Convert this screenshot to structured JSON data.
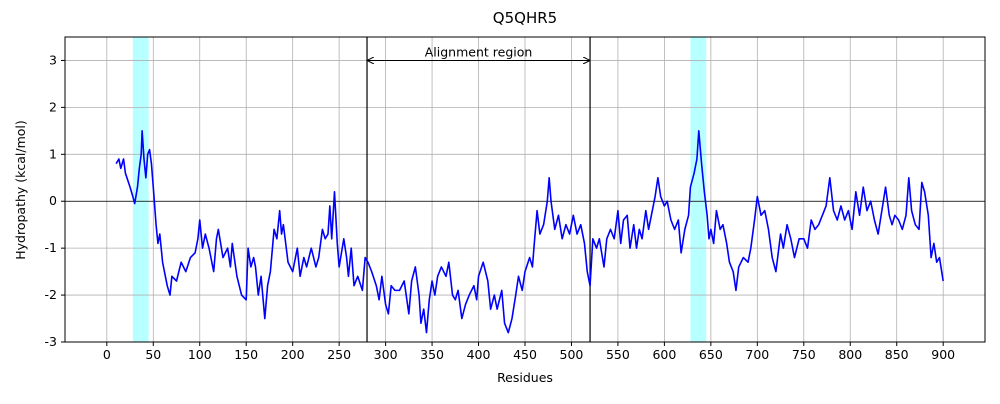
{
  "chart_data": {
    "type": "line",
    "title": "Q5QHR5",
    "xlabel": "Residues",
    "ylabel": "Hydropathy (kcal/mol)",
    "annotation": "Alignment region",
    "xlim": [
      -45,
      945
    ],
    "ylim": [
      -3,
      3.5
    ],
    "xticks": [
      0,
      50,
      100,
      150,
      200,
      250,
      300,
      350,
      400,
      450,
      500,
      550,
      600,
      650,
      700,
      750,
      800,
      850,
      900
    ],
    "yticks": [
      -3,
      -2,
      -1,
      0,
      1,
      2,
      3
    ],
    "grid": true,
    "hline": 0,
    "vlines": [
      280,
      520
    ],
    "arrow_y": 3,
    "highlight_color": "#b8ffff",
    "highlight_regions": [
      [
        28,
        45
      ],
      [
        628,
        645
      ]
    ],
    "x": [
      10,
      13,
      15,
      18,
      20,
      25,
      28,
      30,
      33,
      35,
      37,
      38,
      40,
      42,
      44,
      46,
      48,
      50,
      53,
      55,
      57,
      60,
      63,
      65,
      68,
      70,
      75,
      80,
      85,
      90,
      95,
      98,
      100,
      103,
      106,
      110,
      115,
      118,
      120,
      125,
      130,
      133,
      135,
      140,
      145,
      150,
      152,
      155,
      158,
      160,
      163,
      166,
      170,
      173,
      176,
      180,
      183,
      186,
      188,
      190,
      195,
      200,
      205,
      208,
      212,
      215,
      220,
      225,
      228,
      232,
      235,
      238,
      240,
      242,
      245,
      248,
      250,
      255,
      258,
      260,
      263,
      266,
      270,
      275,
      278,
      281,
      285,
      290,
      293,
      296,
      300,
      303,
      306,
      310,
      315,
      320,
      325,
      328,
      332,
      336,
      338,
      341,
      344,
      347,
      350,
      353,
      356,
      360,
      365,
      368,
      372,
      375,
      378,
      382,
      386,
      390,
      395,
      398,
      400,
      405,
      410,
      413,
      417,
      420,
      425,
      428,
      432,
      436,
      440,
      443,
      447,
      450,
      455,
      458,
      460,
      463,
      466,
      470,
      474,
      476,
      478,
      482,
      486,
      490,
      494,
      498,
      502,
      506,
      510,
      514,
      517,
      520,
      523,
      527,
      530,
      535,
      538,
      542,
      546,
      550,
      553,
      556,
      560,
      563,
      567,
      570,
      573,
      576,
      580,
      583,
      586,
      590,
      593,
      596,
      600,
      603,
      607,
      611,
      615,
      618,
      622,
      626,
      628,
      632,
      635,
      637,
      640,
      643,
      646,
      648,
      650,
      653,
      656,
      660,
      663,
      667,
      670,
      674,
      677,
      680,
      685,
      690,
      693,
      697,
      700,
      704,
      708,
      712,
      716,
      720,
      725,
      728,
      732,
      736,
      740,
      745,
      750,
      754,
      758,
      762,
      766,
      770,
      774,
      778,
      782,
      786,
      790,
      794,
      798,
      802,
      806,
      810,
      814,
      818,
      822,
      826,
      830,
      834,
      838,
      842,
      845,
      848,
      852,
      856,
      860,
      863,
      866,
      870,
      874,
      877,
      880,
      884,
      887,
      890,
      893,
      896,
      900
    ],
    "series": [
      {
        "color": "#0000ff",
        "values": [
          0.8,
          0.9,
          0.7,
          0.9,
          0.6,
          0.3,
          0.1,
          -0.05,
          0.3,
          0.7,
          1.0,
          1.5,
          0.9,
          0.5,
          1.0,
          1.1,
          0.8,
          0.3,
          -0.5,
          -0.9,
          -0.7,
          -1.3,
          -1.6,
          -1.8,
          -2.0,
          -1.6,
          -1.7,
          -1.3,
          -1.5,
          -1.2,
          -1.1,
          -0.8,
          -0.4,
          -1.0,
          -0.7,
          -1.0,
          -1.5,
          -0.8,
          -0.6,
          -1.2,
          -1.0,
          -1.4,
          -0.9,
          -1.6,
          -2.0,
          -2.1,
          -1.0,
          -1.4,
          -1.2,
          -1.4,
          -2.0,
          -1.6,
          -2.5,
          -1.8,
          -1.5,
          -0.6,
          -0.8,
          -0.2,
          -0.7,
          -0.5,
          -1.3,
          -1.5,
          -1.0,
          -1.6,
          -1.2,
          -1.4,
          -1.0,
          -1.4,
          -1.2,
          -0.6,
          -0.8,
          -0.7,
          -0.1,
          -0.8,
          0.2,
          -0.9,
          -1.4,
          -0.8,
          -1.2,
          -1.6,
          -1.0,
          -1.8,
          -1.6,
          -1.9,
          -1.2,
          -1.3,
          -1.5,
          -1.8,
          -2.1,
          -1.6,
          -2.2,
          -2.4,
          -1.8,
          -1.9,
          -1.9,
          -1.7,
          -2.4,
          -1.7,
          -1.4,
          -2.0,
          -2.6,
          -2.3,
          -2.8,
          -2.1,
          -1.7,
          -2.0,
          -1.6,
          -1.4,
          -1.6,
          -1.3,
          -2.0,
          -2.1,
          -1.9,
          -2.5,
          -2.2,
          -2.0,
          -1.8,
          -2.1,
          -1.6,
          -1.3,
          -1.7,
          -2.3,
          -2.0,
          -2.3,
          -1.9,
          -2.6,
          -2.8,
          -2.5,
          -2.0,
          -1.6,
          -1.9,
          -1.5,
          -1.2,
          -1.4,
          -0.9,
          -0.2,
          -0.7,
          -0.5,
          0.0,
          0.5,
          0.0,
          -0.6,
          -0.3,
          -0.8,
          -0.5,
          -0.7,
          -0.3,
          -0.7,
          -0.5,
          -0.9,
          -1.5,
          -1.8,
          -0.8,
          -1.0,
          -0.8,
          -1.4,
          -0.8,
          -0.6,
          -0.8,
          -0.2,
          -0.9,
          -0.4,
          -0.3,
          -1.0,
          -0.5,
          -1.0,
          -0.6,
          -0.8,
          -0.2,
          -0.6,
          -0.3,
          0.1,
          0.5,
          0.1,
          -0.1,
          0.0,
          -0.4,
          -0.6,
          -0.4,
          -1.1,
          -0.6,
          -0.3,
          0.3,
          0.6,
          0.9,
          1.5,
          0.8,
          0.2,
          -0.3,
          -0.8,
          -0.6,
          -0.9,
          -0.2,
          -0.6,
          -0.5,
          -0.9,
          -1.3,
          -1.5,
          -1.9,
          -1.4,
          -1.2,
          -1.3,
          -1.0,
          -0.4,
          0.1,
          -0.3,
          -0.2,
          -0.6,
          -1.2,
          -1.5,
          -0.7,
          -1.0,
          -0.5,
          -0.8,
          -1.2,
          -0.8,
          -0.8,
          -1.0,
          -0.4,
          -0.6,
          -0.5,
          -0.3,
          -0.1,
          0.5,
          -0.2,
          -0.4,
          -0.1,
          -0.4,
          -0.2,
          -0.6,
          0.2,
          -0.3,
          0.3,
          -0.2,
          0.0,
          -0.4,
          -0.7,
          -0.2,
          0.3,
          -0.3,
          -0.5,
          -0.3,
          -0.4,
          -0.6,
          -0.3,
          0.5,
          -0.2,
          -0.5,
          -0.6,
          0.4,
          0.2,
          -0.3,
          -1.2,
          -0.9,
          -1.3,
          -1.2,
          -1.7
        ]
      }
    ]
  }
}
